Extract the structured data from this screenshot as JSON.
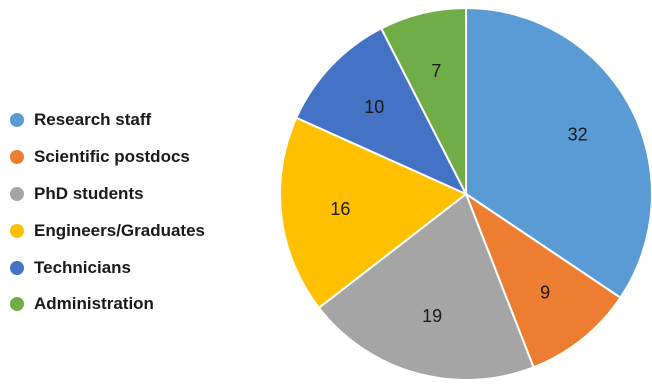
{
  "chart_data": {
    "type": "pie",
    "title": "",
    "start_angle_deg": 0,
    "direction": "clockwise",
    "legend_position": "left",
    "slices": [
      {
        "label": "Research staff",
        "value": 32,
        "color": "#5B9BD5"
      },
      {
        "label": "Scientific postdocs",
        "value": 9,
        "color": "#ED7D31"
      },
      {
        "label": "PhD students",
        "value": 19,
        "color": "#A5A5A5"
      },
      {
        "label": "Engineers/Graduates",
        "value": 16,
        "color": "#FFC000"
      },
      {
        "label": "Technicians",
        "value": 10,
        "color": "#4472C4"
      },
      {
        "label": "Administration",
        "value": 7,
        "color": "#70AD47"
      }
    ]
  }
}
